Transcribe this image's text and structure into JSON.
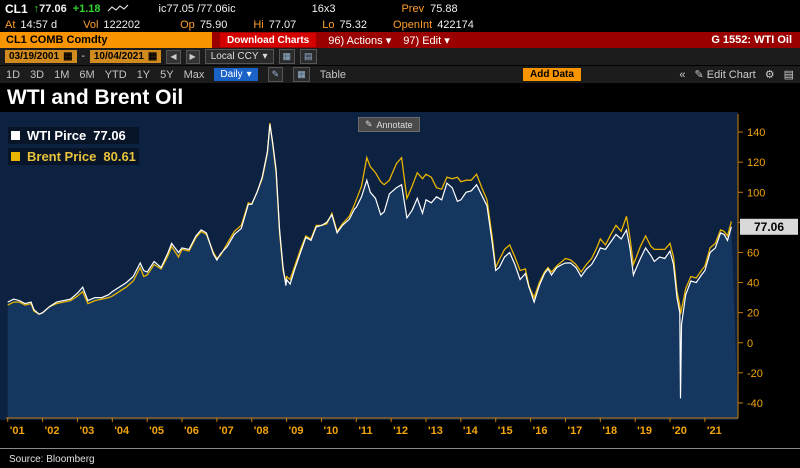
{
  "icons": {
    "up_arrow": "↑",
    "caret_down": "▾",
    "left_arrow": "◀",
    "right_arrow": "▶",
    "collapse": "«",
    "pencil": "✎",
    "gear": "⚙",
    "calendar": "▦",
    "grid": "▦",
    "list": "▤",
    "dash": "-"
  },
  "quote_bar": {
    "ticker": "CL1",
    "price": "77.06",
    "change": "+1.18",
    "bid_ask": "ic77.05 /77.06ic",
    "size": "16x3",
    "prev_label": "Prev",
    "prev": "75.88"
  },
  "stats_bar": {
    "at_label": "At",
    "at": "14:57 d",
    "vol_label": "Vol",
    "vol": "122202",
    "op_label": "Op",
    "op": "75.90",
    "hi_label": "Hi",
    "hi": "77.07",
    "lo_label": "Lo",
    "lo": "75.32",
    "openint_label": "OpenInt",
    "openint": "422174"
  },
  "security_bar": {
    "name": "CL1 COMB Comdty",
    "red_badge": "Download Charts",
    "actions": "96) Actions",
    "edit": "97) Edit",
    "page": "G 1552: WTI Oil"
  },
  "range_bar": {
    "start_date": "03/19/2001",
    "end_date": "10/04/2021",
    "currency": "Local CCY"
  },
  "period_bar": {
    "periods": [
      "1D",
      "3D",
      "1M",
      "6M",
      "YTD",
      "1Y",
      "5Y",
      "Max"
    ],
    "frequency": "Daily",
    "table_label": "Table",
    "add_data_label": "Add Data",
    "edit_chart_label": "Edit Chart"
  },
  "chart": {
    "title": "WTI and Brent Oil",
    "annotate_label": "Annotate",
    "last_badge": "77.06",
    "source": "Source: Bloomberg"
  },
  "legend": {
    "items": [
      {
        "label": "WTI Pirce",
        "value": "77.06",
        "color": "#ffffff"
      },
      {
        "label": "Brent Price",
        "value": "80.61",
        "color": "#e8b400"
      }
    ]
  },
  "colors": {
    "accent_amber": "#f79400",
    "label_amber": "#ff9e2e",
    "positive_green": "#2fd42f",
    "red_bar": "#9a0000",
    "red_badge": "#d40000",
    "plot_bg": "#0d2140",
    "area_fill": "#1e4878",
    "axis": "#c87f0a",
    "tick_text": "#f2a40a",
    "wti_line": "#ffffff",
    "brent_line": "#e8b400",
    "badge_bg": "#d9d9d9",
    "daily_blue": "#1b62c8"
  },
  "chart_data": {
    "type": "line",
    "title": "WTI and Brent Oil",
    "xlabel": "",
    "ylabel": "",
    "grid": false,
    "legend_position": "top-left",
    "xlim": [
      2000.95,
      2021.95
    ],
    "ylim": [
      -50,
      152
    ],
    "yticks": [
      140,
      120,
      100,
      80,
      60,
      40,
      20,
      0,
      -20,
      -40
    ],
    "xyears": [
      2001,
      2002,
      2003,
      2004,
      2005,
      2006,
      2007,
      2008,
      2009,
      2010,
      2011,
      2012,
      2013,
      2014,
      2015,
      2016,
      2017,
      2018,
      2019,
      2020,
      2021
    ],
    "xlabels": [
      "'01",
      "'02",
      "'03",
      "'04",
      "'05",
      "'06",
      "'07",
      "'08",
      "'09",
      "'10",
      "'11",
      "'12",
      "'13",
      "'14",
      "'15",
      "'16",
      "'17",
      "'18",
      "'19",
      "'20",
      "'21"
    ],
    "x": [
      2001.0,
      2001.17,
      2001.33,
      2001.5,
      2001.67,
      2001.75,
      2001.9,
      2002.0,
      2002.2,
      2002.4,
      2002.6,
      2002.8,
      2003.0,
      2003.15,
      2003.3,
      2003.5,
      2003.7,
      2003.9,
      2004.0,
      2004.2,
      2004.4,
      2004.6,
      2004.8,
      2004.9,
      2005.0,
      2005.2,
      2005.4,
      2005.6,
      2005.7,
      2005.9,
      2006.0,
      2006.2,
      2006.4,
      2006.55,
      2006.7,
      2006.9,
      2007.0,
      2007.1,
      2007.3,
      2007.5,
      2007.7,
      2007.9,
      2008.0,
      2008.15,
      2008.3,
      2008.45,
      2008.52,
      2008.6,
      2008.7,
      2008.8,
      2008.9,
      2008.98,
      2009.0,
      2009.1,
      2009.25,
      2009.4,
      2009.55,
      2009.7,
      2009.85,
      2010.0,
      2010.15,
      2010.3,
      2010.45,
      2010.6,
      2010.8,
      2010.95,
      2011.0,
      2011.15,
      2011.3,
      2011.4,
      2011.55,
      2011.7,
      2011.8,
      2011.95,
      2012.0,
      2012.15,
      2012.3,
      2012.45,
      2012.6,
      2012.75,
      2012.9,
      2013.0,
      2013.15,
      2013.3,
      2013.45,
      2013.6,
      2013.75,
      2013.9,
      2014.0,
      2014.15,
      2014.3,
      2014.45,
      2014.6,
      2014.75,
      2014.9,
      2015.0,
      2015.1,
      2015.25,
      2015.4,
      2015.55,
      2015.7,
      2015.85,
      2015.95,
      2016.0,
      2016.1,
      2016.25,
      2016.4,
      2016.5,
      2016.6,
      2016.75,
      2016.9,
      2017.0,
      2017.15,
      2017.3,
      2017.45,
      2017.6,
      2017.75,
      2017.9,
      2018.0,
      2018.15,
      2018.3,
      2018.45,
      2018.6,
      2018.75,
      2018.85,
      2018.95,
      2019.0,
      2019.15,
      2019.3,
      2019.45,
      2019.55,
      2019.7,
      2019.85,
      2020.0,
      2020.1,
      2020.2,
      2020.28,
      2020.3,
      2020.33,
      2020.45,
      2020.6,
      2020.75,
      2020.9,
      2021.0,
      2021.15,
      2021.3,
      2021.45,
      2021.55,
      2021.65,
      2021.76
    ],
    "series": [
      {
        "name": "WTI Pirce",
        "color": "#ffffff",
        "fill_under": true,
        "last": 77.06,
        "values": [
          27,
          29,
          28,
          26,
          27,
          22,
          19,
          20,
          24,
          27,
          28,
          29,
          33,
          37,
          28,
          30,
          30,
          32,
          34,
          37,
          40,
          44,
          53,
          48,
          47,
          54,
          50,
          60,
          66,
          60,
          63,
          62,
          71,
          75,
          73,
          59,
          55,
          59,
          64,
          72,
          76,
          92,
          92,
          100,
          110,
          127,
          145,
          133,
          115,
          75,
          50,
          38,
          42,
          39,
          50,
          60,
          70,
          68,
          77,
          78,
          80,
          85,
          73,
          78,
          82,
          89,
          90,
          97,
          108,
          100,
          96,
          85,
          87,
          99,
          100,
          103,
          105,
          83,
          88,
          96,
          86,
          95,
          93,
          97,
          95,
          106,
          103,
          94,
          95,
          100,
          101,
          105,
          98,
          91,
          66,
          48,
          50,
          57,
          60,
          52,
          42,
          46,
          37,
          34,
          27,
          38,
          46,
          49,
          45,
          50,
          52,
          53,
          53,
          50,
          44,
          49,
          52,
          58,
          63,
          62,
          67,
          72,
          69,
          75,
          63,
          45,
          48,
          56,
          63,
          58,
          54,
          57,
          56,
          61,
          52,
          30,
          20,
          -37,
          12,
          32,
          41,
          40,
          45,
          48,
          60,
          63,
          73,
          72,
          68,
          77.06
        ]
      },
      {
        "name": "Brent Price",
        "color": "#e8b400",
        "fill_under": false,
        "last": 80.61,
        "values": [
          25,
          27,
          27,
          25,
          26,
          21,
          19,
          20,
          24,
          26,
          27,
          28,
          31,
          34,
          26,
          28,
          29,
          30,
          31,
          34,
          37,
          41,
          50,
          44,
          45,
          52,
          49,
          58,
          64,
          57,
          62,
          61,
          70,
          74,
          72,
          60,
          56,
          58,
          66,
          74,
          78,
          93,
          92,
          100,
          109,
          126,
          146,
          132,
          113,
          73,
          48,
          40,
          44,
          42,
          52,
          62,
          71,
          69,
          78,
          78,
          79,
          86,
          74,
          79,
          84,
          92,
          95,
          104,
          123,
          117,
          113,
          107,
          105,
          108,
          111,
          119,
          123,
          96,
          104,
          113,
          109,
          112,
          110,
          103,
          102,
          110,
          109,
          110,
          107,
          108,
          108,
          112,
          103,
          95,
          70,
          50,
          55,
          62,
          65,
          57,
          48,
          49,
          38,
          35,
          30,
          40,
          47,
          50,
          47,
          51,
          54,
          56,
          55,
          52,
          47,
          52,
          56,
          63,
          69,
          65,
          72,
          78,
          74,
          84,
          70,
          52,
          55,
          64,
          71,
          64,
          62,
          62,
          62,
          66,
          57,
          34,
          25,
          19,
          22,
          36,
          44,
          43,
          48,
          51,
          63,
          66,
          75,
          74,
          71,
          80.61
        ]
      }
    ]
  }
}
